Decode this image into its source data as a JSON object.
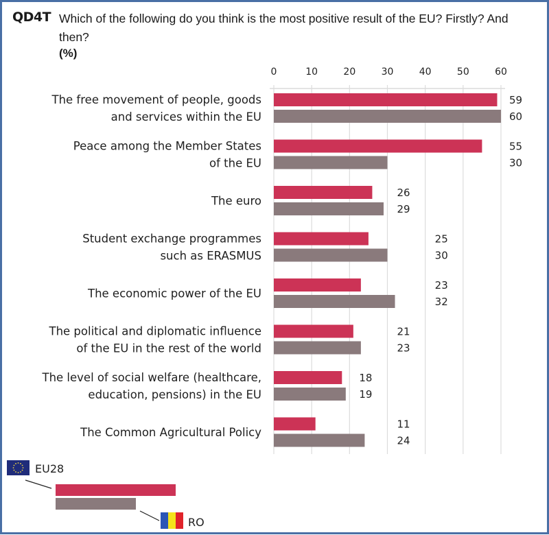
{
  "question": {
    "code": "QD4T",
    "text": "Which of the following do you think is the most positive result of the EU? Firstly? And then?",
    "unit": "(%)"
  },
  "colors": {
    "eu28": "#cc3356",
    "ro": "#8a7a7c",
    "grid": "#dcdcdc",
    "border": "#4a6fa5"
  },
  "legend": {
    "eu28_label": "EU28",
    "ro_label": "RO",
    "eu28_icon": "eu-flag-icon",
    "ro_icon": "romania-flag-icon"
  },
  "chart_data": {
    "type": "bar",
    "orientation": "horizontal",
    "title": "Which of the following do you think is the most positive result of the EU? Firstly? And then?",
    "xlabel": "(%)",
    "ylabel": "",
    "xlim": [
      0,
      60
    ],
    "xticks": [
      0,
      10,
      20,
      30,
      40,
      50,
      60
    ],
    "grid": true,
    "legend_position": "bottom-left",
    "categories": [
      [
        "The free movement of people, goods",
        "and services within the EU"
      ],
      [
        "Peace among the Member States",
        "of the EU"
      ],
      [
        "The euro"
      ],
      [
        "Student exchange programmes",
        "such as ERASMUS"
      ],
      [
        "The economic power of the EU"
      ],
      [
        "The political and diplomatic influence",
        "of the EU in the rest of the world"
      ],
      [
        "The level of social welfare (healthcare,",
        "education, pensions) in the EU"
      ],
      [
        "The Common Agricultural Policy"
      ]
    ],
    "series": [
      {
        "name": "EU28",
        "values": [
          59,
          55,
          26,
          25,
          23,
          21,
          18,
          11
        ]
      },
      {
        "name": "RO",
        "values": [
          60,
          30,
          29,
          30,
          32,
          23,
          19,
          24
        ]
      }
    ]
  }
}
